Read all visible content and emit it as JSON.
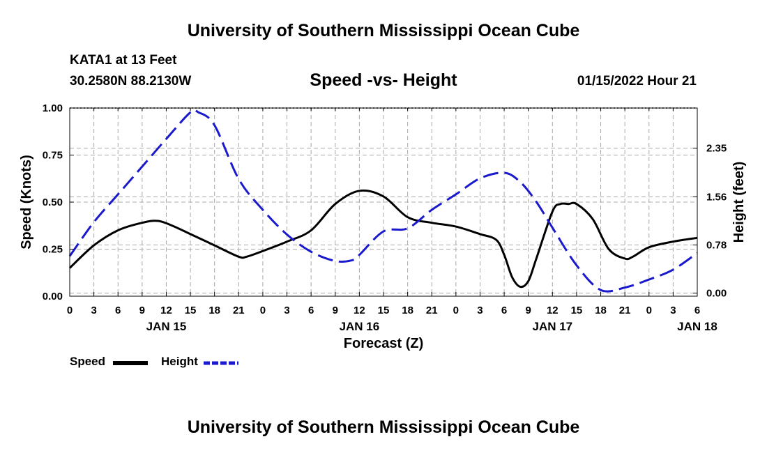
{
  "header": {
    "title": "University of Southern Mississippi Ocean Cube",
    "station": "KATA1 at 13 Feet",
    "coordinates": "30.2580N  88.2130W",
    "chart_title": "Speed -vs- Height",
    "datetime": "01/15/2022 Hour 21"
  },
  "footer": {
    "title": "University of Southern Mississippi Ocean Cube"
  },
  "legend": {
    "speed_label": "Speed",
    "height_label": "Height",
    "speed_color": "#000000",
    "height_color": "#1a1acc"
  },
  "chart_data": {
    "type": "line",
    "title": "Speed -vs- Height",
    "xlabel": "Forecast (Z)",
    "ylabel": "Speed (Knots)",
    "y2label": "Height (feet)",
    "x_range_hours": [
      0,
      78
    ],
    "x_start": "2022-01-15 00Z",
    "x_tick_step_hours": 3,
    "x_tick_labels": [
      "0",
      "3",
      "6",
      "9",
      "12",
      "15",
      "18",
      "21",
      "0",
      "3",
      "6",
      "9",
      "12",
      "15",
      "18",
      "21",
      "0",
      "3",
      "6",
      "9",
      "12",
      "15",
      "18",
      "21",
      "0",
      "3",
      "6"
    ],
    "date_labels": [
      {
        "hour": 12,
        "label": "JAN 15"
      },
      {
        "hour": 36,
        "label": "JAN 16"
      },
      {
        "hour": 60,
        "label": "JAN 17"
      },
      {
        "hour": 78,
        "label": "JAN 18"
      }
    ],
    "ylim": [
      0,
      1.0
    ],
    "y_ticks": [
      0,
      0.25,
      0.5,
      0.75,
      1.0
    ],
    "y_tick_labels": [
      "0.00",
      "0.25",
      "0.50",
      "0.75",
      "1.00"
    ],
    "y2lim": [
      -0.05,
      3.0
    ],
    "y2_ticks": [
      0.0,
      0.78,
      1.56,
      2.35
    ],
    "y2_tick_labels": [
      "0.00",
      "0.78",
      "1.56",
      "2.35"
    ],
    "grid": true,
    "legend_position": "bottom-left",
    "series": [
      {
        "name": "Speed",
        "axis": "left",
        "color": "#000000",
        "style": "solid",
        "x": [
          0,
          3,
          6,
          9,
          11,
          13,
          15,
          18,
          21,
          22,
          24,
          27,
          30,
          33,
          36,
          39,
          42,
          45,
          48,
          51,
          53,
          54,
          55,
          56,
          57,
          58,
          60,
          61,
          62,
          63,
          65,
          67,
          69,
          70,
          72,
          75,
          78
        ],
        "y": [
          0.15,
          0.27,
          0.35,
          0.39,
          0.4,
          0.37,
          0.33,
          0.27,
          0.21,
          0.21,
          0.24,
          0.29,
          0.35,
          0.49,
          0.56,
          0.53,
          0.42,
          0.39,
          0.37,
          0.33,
          0.3,
          0.22,
          0.1,
          0.05,
          0.08,
          0.2,
          0.45,
          0.49,
          0.49,
          0.49,
          0.41,
          0.25,
          0.2,
          0.21,
          0.26,
          0.29,
          0.31
        ]
      },
      {
        "name": "Height",
        "axis": "right",
        "color": "#1a1acc",
        "style": "dashed",
        "x": [
          0,
          3,
          6,
          9,
          12,
          15,
          16,
          18,
          21,
          24,
          27,
          30,
          33,
          35,
          36,
          39,
          42,
          45,
          48,
          51,
          54,
          56,
          58,
          60,
          63,
          66,
          69,
          72,
          75,
          78
        ],
        "y": [
          0.6,
          1.15,
          1.6,
          2.05,
          2.5,
          2.93,
          2.93,
          2.72,
          1.85,
          1.35,
          0.95,
          0.67,
          0.52,
          0.53,
          0.62,
          1.0,
          1.05,
          1.35,
          1.6,
          1.86,
          1.95,
          1.8,
          1.48,
          1.06,
          0.45,
          0.05,
          0.09,
          0.22,
          0.38,
          0.65
        ]
      }
    ]
  }
}
